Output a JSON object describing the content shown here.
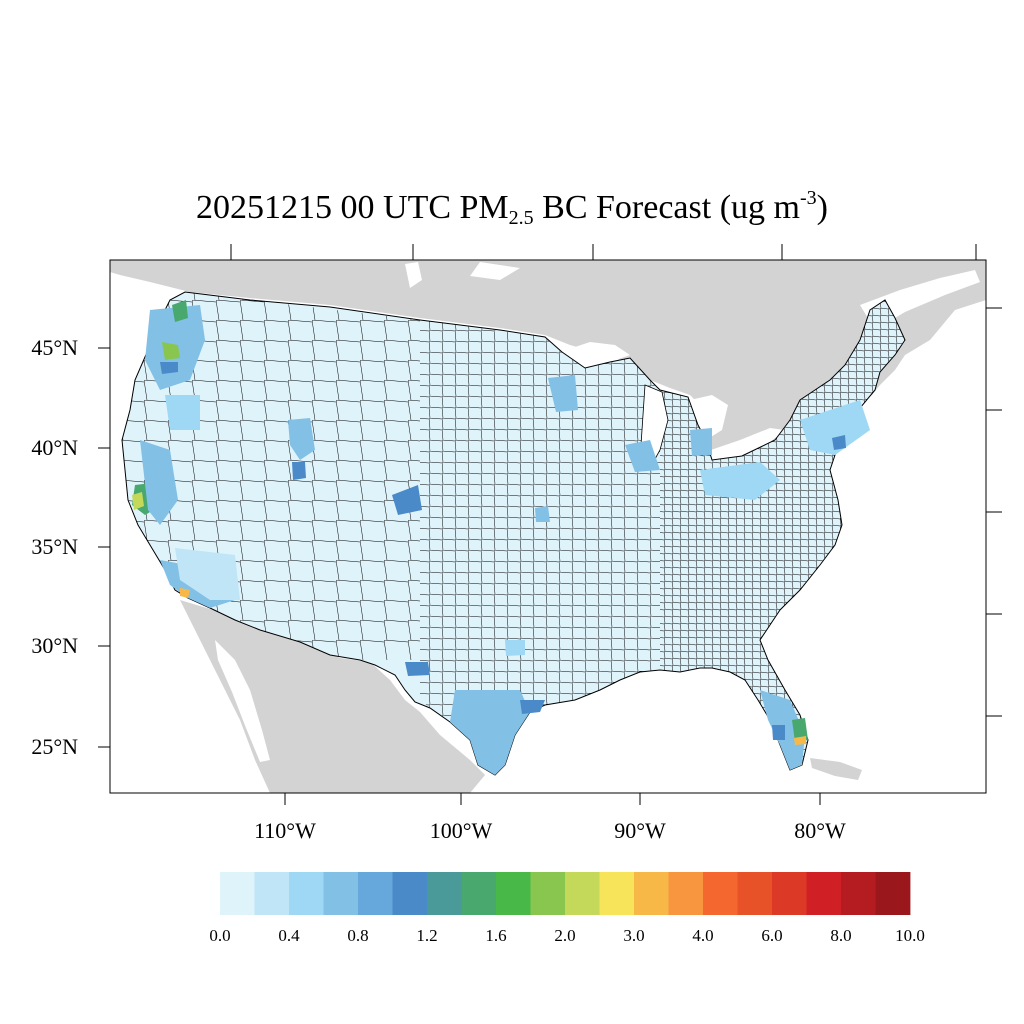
{
  "title": {
    "pre": "20251215 00 UTC PM",
    "sub": "2.5",
    "mid": " BC Forecast (ug m",
    "sup": "-3",
    "post": ")"
  },
  "map": {
    "region": "CONUS",
    "projection": "Lambert Conformal",
    "lat_ticks": [
      "45°N",
      "40°N",
      "35°N",
      "30°N",
      "25°N"
    ],
    "lon_ticks": [
      "110°W",
      "100°W",
      "90°W",
      "80°W"
    ],
    "land_color": "#d3d3d3",
    "water_color": "#ffffff",
    "county_fill": "#dff3fb",
    "county_border": "#000000"
  },
  "colorbar": {
    "labels": [
      "0.0",
      "0.4",
      "0.8",
      "1.2",
      "1.6",
      "2.0",
      "3.0",
      "4.0",
      "6.0",
      "8.0",
      "10.0"
    ],
    "colors": [
      "#dff3fb",
      "#bfe5f7",
      "#9ed8f4",
      "#82c0e6",
      "#67a8dc",
      "#4a8ac8",
      "#4a9a9a",
      "#48a86e",
      "#48b848",
      "#88c650",
      "#c4d85a",
      "#f8e45a",
      "#f8b848",
      "#f89640",
      "#f46830",
      "#e85228",
      "#dc3a26",
      "#d02026",
      "#b41c22",
      "#9a181c"
    ]
  }
}
